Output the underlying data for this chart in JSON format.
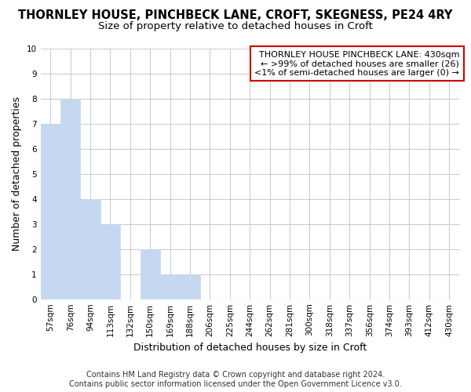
{
  "title": "THORNLEY HOUSE, PINCHBECK LANE, CROFT, SKEGNESS, PE24 4RY",
  "subtitle": "Size of property relative to detached houses in Croft",
  "xlabel": "Distribution of detached houses by size in Croft",
  "ylabel": "Number of detached properties",
  "categories": [
    "57sqm",
    "76sqm",
    "94sqm",
    "113sqm",
    "132sqm",
    "150sqm",
    "169sqm",
    "188sqm",
    "206sqm",
    "225sqm",
    "244sqm",
    "262sqm",
    "281sqm",
    "300sqm",
    "318sqm",
    "337sqm",
    "356sqm",
    "374sqm",
    "393sqm",
    "412sqm",
    "430sqm"
  ],
  "values": [
    7,
    8,
    4,
    3,
    0,
    2,
    1,
    1,
    0,
    0,
    0,
    0,
    0,
    0,
    0,
    0,
    0,
    0,
    0,
    0,
    0
  ],
  "bar_color": "#c5d8f0",
  "bar_edge_color": "#c5d8f0",
  "ylim": [
    0,
    10
  ],
  "yticks": [
    0,
    1,
    2,
    3,
    4,
    5,
    6,
    7,
    8,
    9,
    10
  ],
  "legend_title": "THORNLEY HOUSE PINCHBECK LANE: 430sqm",
  "legend_line1": "← >99% of detached houses are smaller (26)",
  "legend_line2": "<1% of semi-detached houses are larger (0) →",
  "legend_box_color": "#ffffff",
  "legend_box_edge": "#cc0000",
  "footer_line1": "Contains HM Land Registry data © Crown copyright and database right 2024.",
  "footer_line2": "Contains public sector information licensed under the Open Government Licence v3.0.",
  "background_color": "#ffffff",
  "grid_color": "#cccccc",
  "title_fontsize": 10.5,
  "subtitle_fontsize": 9.5,
  "axis_label_fontsize": 9,
  "tick_fontsize": 7.5,
  "legend_fontsize": 8,
  "footer_fontsize": 7
}
